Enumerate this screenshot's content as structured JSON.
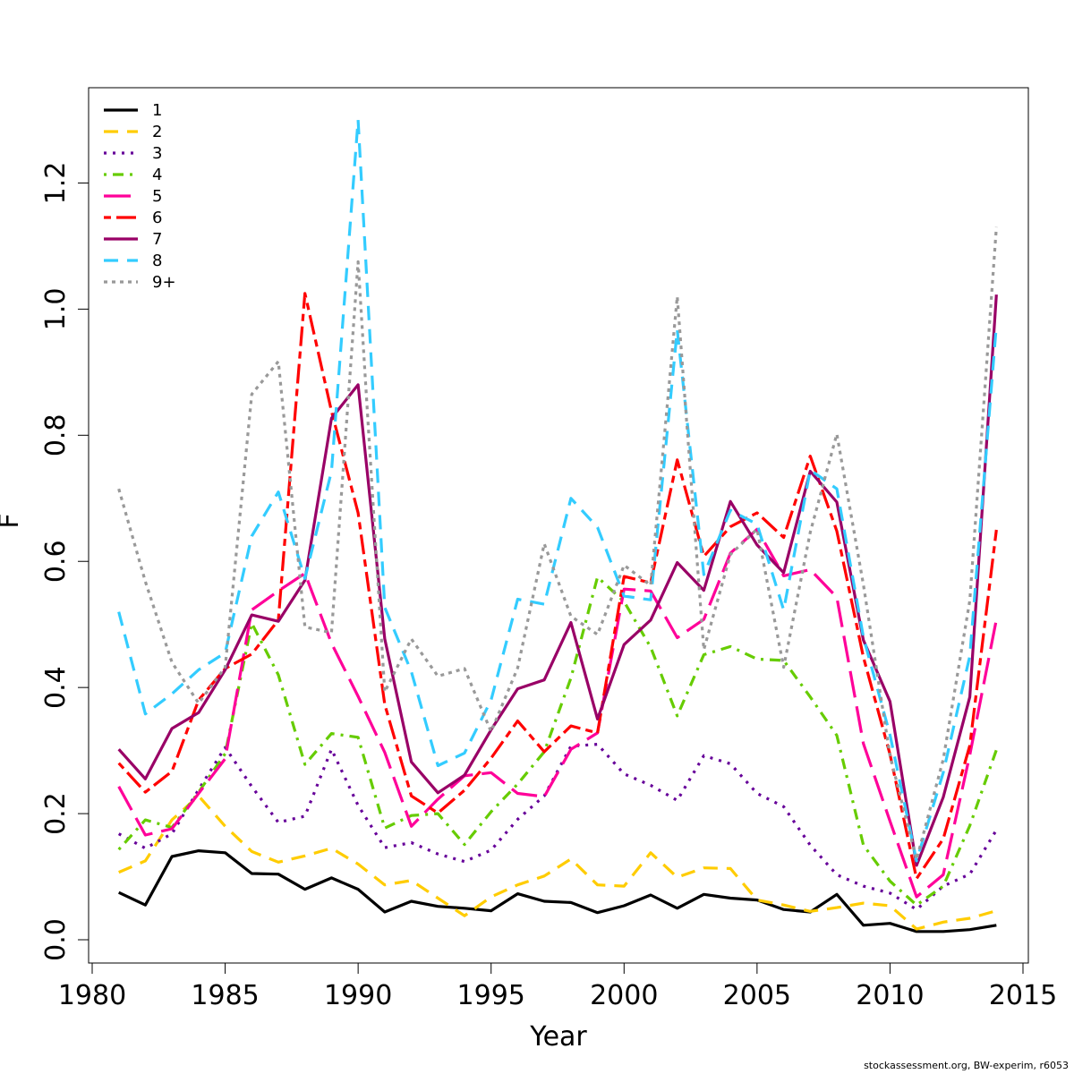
{
  "chart_data": {
    "type": "line",
    "xlabel": "Year",
    "ylabel": "F",
    "xlim": [
      1980,
      2015
    ],
    "ylim": [
      0,
      1.3
    ],
    "x_ticks": [
      "1980",
      "1985",
      "1990",
      "1995",
      "2000",
      "2005",
      "2010",
      "2015"
    ],
    "y_ticks": [
      "0.0",
      "0.2",
      "0.4",
      "0.6",
      "0.8",
      "1.0",
      "1.2"
    ],
    "grid": false,
    "legend_position": "top-left",
    "x": [
      1981,
      1982,
      1983,
      1984,
      1985,
      1986,
      1987,
      1988,
      1989,
      1990,
      1991,
      1992,
      1993,
      1994,
      1995,
      1996,
      1997,
      1998,
      1999,
      2000,
      2001,
      2002,
      2003,
      2004,
      2005,
      2006,
      2007,
      2008,
      2009,
      2010,
      2011,
      2012,
      2013,
      2014
    ],
    "series": [
      {
        "name": "1",
        "color": "#000000",
        "dash": "solid",
        "values": [
          0.075,
          0.055,
          0.132,
          0.141,
          0.138,
          0.105,
          0.104,
          0.08,
          0.098,
          0.08,
          0.044,
          0.061,
          0.053,
          0.05,
          0.046,
          0.073,
          0.061,
          0.059,
          0.043,
          0.054,
          0.071,
          0.05,
          0.072,
          0.066,
          0.063,
          0.048,
          0.044,
          0.072,
          0.023,
          0.026,
          0.013,
          0.013,
          0.016,
          0.023
        ]
      },
      {
        "name": "2",
        "color": "#FFCC00",
        "dash": "dashed",
        "values": [
          0.107,
          0.125,
          0.19,
          0.228,
          0.18,
          0.14,
          0.123,
          0.133,
          0.145,
          0.12,
          0.087,
          0.094,
          0.066,
          0.038,
          0.068,
          0.087,
          0.101,
          0.128,
          0.087,
          0.085,
          0.138,
          0.099,
          0.114,
          0.113,
          0.063,
          0.055,
          0.045,
          0.051,
          0.058,
          0.054,
          0.017,
          0.028,
          0.034,
          0.046
        ]
      },
      {
        "name": "3",
        "color": "#660099",
        "dash": "dotted",
        "values": [
          0.168,
          0.145,
          0.168,
          0.238,
          0.305,
          0.243,
          0.186,
          0.196,
          0.302,
          0.213,
          0.146,
          0.154,
          0.136,
          0.124,
          0.142,
          0.191,
          0.228,
          0.307,
          0.31,
          0.263,
          0.245,
          0.221,
          0.292,
          0.279,
          0.232,
          0.211,
          0.15,
          0.103,
          0.085,
          0.074,
          0.048,
          0.085,
          0.104,
          0.174
        ]
      },
      {
        "name": "4",
        "color": "#66CC00",
        "dash": "dotdash",
        "values": [
          0.143,
          0.19,
          0.178,
          0.234,
          0.295,
          0.502,
          0.42,
          0.278,
          0.327,
          0.321,
          0.177,
          0.197,
          0.2,
          0.151,
          0.203,
          0.247,
          0.298,
          0.415,
          0.575,
          0.536,
          0.464,
          0.355,
          0.452,
          0.465,
          0.445,
          0.443,
          0.385,
          0.324,
          0.15,
          0.093,
          0.055,
          0.085,
          0.181,
          0.301
        ]
      },
      {
        "name": "5",
        "color": "#FF0099",
        "dash": "longdash",
        "values": [
          0.243,
          0.166,
          0.176,
          0.232,
          0.287,
          0.523,
          0.553,
          0.581,
          0.47,
          0.386,
          0.297,
          0.18,
          0.223,
          0.26,
          0.265,
          0.232,
          0.227,
          0.302,
          0.328,
          0.556,
          0.553,
          0.479,
          0.508,
          0.613,
          0.651,
          0.577,
          0.587,
          0.543,
          0.311,
          0.188,
          0.068,
          0.103,
          0.293,
          0.508
        ]
      },
      {
        "name": "6",
        "color": "#FF0000",
        "dash": "twodash",
        "values": [
          0.28,
          0.234,
          0.267,
          0.38,
          0.43,
          0.453,
          0.507,
          1.025,
          0.838,
          0.677,
          0.373,
          0.228,
          0.201,
          0.237,
          0.288,
          0.347,
          0.298,
          0.339,
          0.328,
          0.576,
          0.566,
          0.761,
          0.608,
          0.655,
          0.677,
          0.638,
          0.767,
          0.648,
          0.448,
          0.294,
          0.097,
          0.16,
          0.308,
          0.65
        ]
      },
      {
        "name": "7",
        "color": "#990066",
        "dash": "solid",
        "values": [
          0.302,
          0.255,
          0.335,
          0.36,
          0.428,
          0.515,
          0.505,
          0.57,
          0.827,
          0.88,
          0.477,
          0.282,
          0.233,
          0.261,
          0.333,
          0.398,
          0.412,
          0.503,
          0.35,
          0.468,
          0.507,
          0.598,
          0.554,
          0.695,
          0.626,
          0.582,
          0.743,
          0.694,
          0.475,
          0.378,
          0.118,
          0.226,
          0.385,
          1.023
        ]
      },
      {
        "name": "8",
        "color": "#33CCFF",
        "dash": "dashed",
        "values": [
          0.52,
          0.358,
          0.39,
          0.428,
          0.455,
          0.64,
          0.71,
          0.573,
          0.743,
          1.3,
          0.527,
          0.425,
          0.276,
          0.296,
          0.38,
          0.54,
          0.532,
          0.7,
          0.654,
          0.545,
          0.539,
          0.967,
          0.579,
          0.681,
          0.659,
          0.523,
          0.745,
          0.715,
          0.48,
          0.325,
          0.125,
          0.265,
          0.45,
          0.975
        ]
      },
      {
        "name": "9+",
        "color": "#999999",
        "dash": "shortdot",
        "values": [
          0.715,
          0.568,
          0.44,
          0.375,
          0.432,
          0.865,
          0.917,
          0.496,
          0.487,
          1.075,
          0.393,
          0.477,
          0.418,
          0.43,
          0.33,
          0.431,
          0.628,
          0.513,
          0.484,
          0.594,
          0.562,
          1.02,
          0.46,
          0.611,
          0.651,
          0.432,
          0.646,
          0.802,
          0.563,
          0.292,
          0.127,
          0.286,
          0.538,
          1.13
        ]
      }
    ]
  },
  "footer": {
    "credit": "stockassessment.org, BW-experim, r6053"
  }
}
